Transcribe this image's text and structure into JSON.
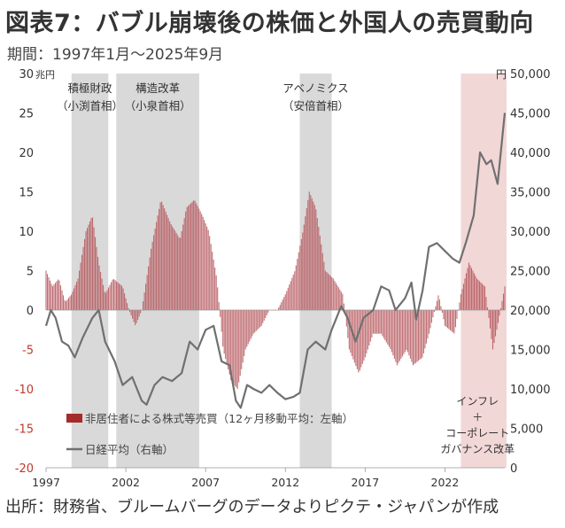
{
  "title": "図表7：バブル崩壊後の株価と外国人の売買動向",
  "subtitle": "期間：1997年1月〜2025年9月",
  "source": "出所：財務省、ブルームバーグのデータよりピクテ・ジャパンが作成",
  "chart_data": {
    "type": "bar+line",
    "x_ticks": [
      "1997",
      "2002",
      "2007",
      "2012",
      "2017",
      "2022"
    ],
    "y_left": {
      "unit": "兆円",
      "ylim": [
        -20,
        30
      ],
      "ticks": [
        "30",
        "25",
        "20",
        "15",
        "10",
        "5",
        "0",
        "-5",
        "-10",
        "-15",
        "-20"
      ]
    },
    "y_right": {
      "unit": "円",
      "ylim": [
        0,
        50000
      ],
      "ticks": [
        "50,000",
        "45,000",
        "40,000",
        "35,000",
        "30,000",
        "25,000",
        "20,000",
        "15,000",
        "10,000",
        "5,000",
        "0"
      ]
    },
    "shaded_periods": [
      {
        "start": 1998.6,
        "end": 2000.9,
        "label1": "積極財政",
        "label2": "（小渕首相）"
      },
      {
        "start": 2001.4,
        "end": 2006.6,
        "label1": "構造改革",
        "label2": "（小泉首相）"
      },
      {
        "start": 2012.9,
        "end": 2014.9,
        "label1": "アベノミクス",
        "label2": "（安倍首相）"
      }
    ],
    "pink_period": {
      "start": 2023.0,
      "end": 2025.75,
      "lines": [
        "インフレ",
        "＋",
        "コーポレート",
        "ガバナンス改革"
      ]
    },
    "legend": [
      {
        "name": "非居住者による株式等売買（12ヶ月移動平均：左軸）",
        "color": "#a52a2a"
      },
      {
        "name": "日経平均（右軸）",
        "color": "#707070"
      }
    ],
    "foreign_flow_keypoints": [
      [
        1997.0,
        5
      ],
      [
        1997.4,
        3
      ],
      [
        1997.8,
        4
      ],
      [
        1998.2,
        1
      ],
      [
        1998.6,
        2
      ],
      [
        1999.0,
        4
      ],
      [
        1999.5,
        10
      ],
      [
        1999.9,
        12
      ],
      [
        2000.3,
        6
      ],
      [
        2000.7,
        2
      ],
      [
        2001.2,
        4
      ],
      [
        2001.8,
        3
      ],
      [
        2002.2,
        0
      ],
      [
        2002.6,
        -2
      ],
      [
        2003.0,
        0
      ],
      [
        2003.6,
        8
      ],
      [
        2004.2,
        14
      ],
      [
        2004.8,
        11
      ],
      [
        2005.4,
        9
      ],
      [
        2005.8,
        13
      ],
      [
        2006.3,
        14
      ],
      [
        2006.8,
        12
      ],
      [
        2007.2,
        10
      ],
      [
        2007.7,
        4
      ],
      [
        2008.1,
        -5
      ],
      [
        2008.6,
        -9
      ],
      [
        2009.0,
        -10
      ],
      [
        2009.5,
        -5
      ],
      [
        2010.0,
        -3
      ],
      [
        2010.5,
        -2
      ],
      [
        2011.0,
        0
      ],
      [
        2011.5,
        0
      ],
      [
        2012.0,
        2
      ],
      [
        2012.6,
        5
      ],
      [
        2013.1,
        10
      ],
      [
        2013.5,
        15
      ],
      [
        2013.9,
        13
      ],
      [
        2014.5,
        5
      ],
      [
        2015.0,
        4
      ],
      [
        2015.6,
        2
      ],
      [
        2016.0,
        -5
      ],
      [
        2016.6,
        -8
      ],
      [
        2017.0,
        -6
      ],
      [
        2017.5,
        -3
      ],
      [
        2018.0,
        -3
      ],
      [
        2018.6,
        -5
      ],
      [
        2019.0,
        -7
      ],
      [
        2019.6,
        -5
      ],
      [
        2020.0,
        -7
      ],
      [
        2020.6,
        -6
      ],
      [
        2021.0,
        -3
      ],
      [
        2021.6,
        2
      ],
      [
        2022.0,
        -2
      ],
      [
        2022.6,
        -3
      ],
      [
        2023.0,
        2
      ],
      [
        2023.5,
        6
      ],
      [
        2024.0,
        4
      ],
      [
        2024.5,
        3
      ],
      [
        2025.0,
        -5
      ],
      [
        2025.3,
        -2
      ],
      [
        2025.75,
        3
      ]
    ],
    "nikkei_keypoints": [
      [
        1997.0,
        18000
      ],
      [
        1997.3,
        20000
      ],
      [
        1997.6,
        19000
      ],
      [
        1998.0,
        16000
      ],
      [
        1998.4,
        15500
      ],
      [
        1998.8,
        14000
      ],
      [
        1999.3,
        16500
      ],
      [
        1999.9,
        19000
      ],
      [
        2000.3,
        20000
      ],
      [
        2000.7,
        16000
      ],
      [
        2001.3,
        13500
      ],
      [
        2001.8,
        10500
      ],
      [
        2002.4,
        11500
      ],
      [
        2003.0,
        8500
      ],
      [
        2003.3,
        8000
      ],
      [
        2003.8,
        10500
      ],
      [
        2004.3,
        11500
      ],
      [
        2004.9,
        11000
      ],
      [
        2005.5,
        12000
      ],
      [
        2006.0,
        16000
      ],
      [
        2006.5,
        15000
      ],
      [
        2007.0,
        17500
      ],
      [
        2007.5,
        18000
      ],
      [
        2008.0,
        13500
      ],
      [
        2008.5,
        13000
      ],
      [
        2008.9,
        8500
      ],
      [
        2009.2,
        7600
      ],
      [
        2009.6,
        10500
      ],
      [
        2010.0,
        10000
      ],
      [
        2010.5,
        9500
      ],
      [
        2011.0,
        10500
      ],
      [
        2011.5,
        9500
      ],
      [
        2012.0,
        8700
      ],
      [
        2012.5,
        9000
      ],
      [
        2012.9,
        9500
      ],
      [
        2013.4,
        15000
      ],
      [
        2013.9,
        16000
      ],
      [
        2014.5,
        15000
      ],
      [
        2014.9,
        17500
      ],
      [
        2015.5,
        20500
      ],
      [
        2015.9,
        19000
      ],
      [
        2016.4,
        16000
      ],
      [
        2016.9,
        19000
      ],
      [
        2017.5,
        20000
      ],
      [
        2018.0,
        23000
      ],
      [
        2018.5,
        22500
      ],
      [
        2018.9,
        20000
      ],
      [
        2019.5,
        21500
      ],
      [
        2019.9,
        23500
      ],
      [
        2020.2,
        18800
      ],
      [
        2020.6,
        22500
      ],
      [
        2021.0,
        28000
      ],
      [
        2021.5,
        28500
      ],
      [
        2022.0,
        27500
      ],
      [
        2022.5,
        26500
      ],
      [
        2022.9,
        26000
      ],
      [
        2023.3,
        28500
      ],
      [
        2023.8,
        32000
      ],
      [
        2024.2,
        40000
      ],
      [
        2024.6,
        38500
      ],
      [
        2024.9,
        39000
      ],
      [
        2025.3,
        36000
      ],
      [
        2025.5,
        40000
      ],
      [
        2025.75,
        45000
      ]
    ]
  }
}
